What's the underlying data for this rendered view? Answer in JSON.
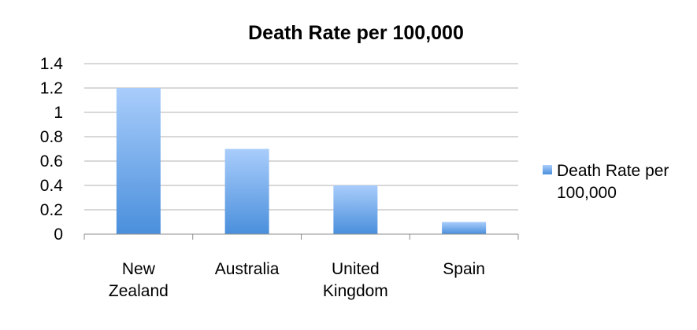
{
  "chart_data": {
    "type": "bar",
    "title": "Death Rate per 100,000",
    "categories": [
      [
        "New",
        "Zealand"
      ],
      [
        "Australia"
      ],
      [
        "United",
        "Kingdom"
      ],
      [
        "Spain"
      ]
    ],
    "series": [
      {
        "name": "Death Rate per 100,000",
        "values": [
          1.2,
          0.7,
          0.4,
          0.1
        ]
      }
    ],
    "ylim": [
      0,
      1.4
    ],
    "yticks": [
      "0",
      "0.2",
      "0.4",
      "0.6",
      "0.8",
      "1",
      "1.2",
      "1.4"
    ],
    "grid": true,
    "legend_position": "right",
    "legend_lines": [
      "Death Rate per",
      "100,000"
    ],
    "colors": {
      "bar_top": "#a9cdfb",
      "bar_bottom": "#4a8fdc",
      "gridline": "#b0b0b0",
      "axis": "#8c8c8c"
    }
  }
}
